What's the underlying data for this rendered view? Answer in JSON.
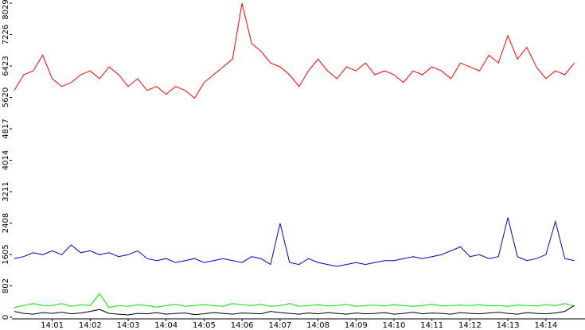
{
  "chart_data": {
    "type": "line",
    "x": [
      0,
      0.25,
      0.5,
      0.75,
      1,
      1.25,
      1.5,
      1.75,
      2,
      2.25,
      2.5,
      2.75,
      3,
      3.25,
      3.5,
      3.75,
      4,
      4.25,
      4.5,
      4.75,
      5,
      5.25,
      5.5,
      5.75,
      6,
      6.25,
      6.5,
      6.75,
      7,
      7.25,
      7.5,
      7.75,
      8,
      8.25,
      8.5,
      8.75,
      9,
      9.25,
      9.5,
      9.75,
      10,
      10.25,
      10.5,
      10.75,
      11,
      11.25,
      11.5,
      11.75,
      12,
      12.25,
      12.5,
      12.75,
      13,
      13.25,
      13.5,
      13.75,
      14,
      14.25,
      14.5,
      14.75
    ],
    "xlim": [
      -0.06,
      15.03
    ],
    "xticks": [
      {
        "value": 1,
        "label": "14:01"
      },
      {
        "value": 2,
        "label": "14:02"
      },
      {
        "value": 3,
        "label": "14:03"
      },
      {
        "value": 4,
        "label": "14:04"
      },
      {
        "value": 5,
        "label": "14:05"
      },
      {
        "value": 6,
        "label": "14:06"
      },
      {
        "value": 7,
        "label": "14:07"
      },
      {
        "value": 8,
        "label": "14:08"
      },
      {
        "value": 9,
        "label": "14:09"
      },
      {
        "value": 10,
        "label": "14:10"
      },
      {
        "value": 11,
        "label": "14:11"
      },
      {
        "value": 12,
        "label": "14:12"
      },
      {
        "value": 13,
        "label": "14:13"
      },
      {
        "value": 14,
        "label": "14:14"
      }
    ],
    "ylim": [
      0,
      8029
    ],
    "yticks": [
      0,
      802,
      1605,
      2408,
      3211,
      4014,
      4817,
      5620,
      6423,
      7226,
      8029
    ],
    "grid": false,
    "series": [
      {
        "color": "#ff0000",
        "values": [
          5800,
          6200,
          6300,
          6700,
          6100,
          5900,
          6000,
          6200,
          6300,
          6100,
          6400,
          6200,
          5900,
          6100,
          5800,
          5900,
          5700,
          5900,
          5800,
          5600,
          6000,
          6200,
          6400,
          6600,
          8029,
          7000,
          6800,
          6500,
          6400,
          6200,
          5900,
          6300,
          6600,
          6300,
          6100,
          6400,
          6300,
          6500,
          6200,
          6300,
          6200,
          6000,
          6300,
          6200,
          6400,
          6300,
          6100,
          6500,
          6400,
          6300,
          6700,
          6500,
          7200,
          6600,
          6900,
          6400,
          6100,
          6300,
          6200,
          6500
        ]
      },
      {
        "color": "#0000c8",
        "values": [
          1500,
          1550,
          1650,
          1600,
          1700,
          1600,
          1850,
          1650,
          1700,
          1600,
          1650,
          1550,
          1600,
          1700,
          1500,
          1450,
          1500,
          1400,
          1450,
          1500,
          1400,
          1450,
          1500,
          1450,
          1400,
          1550,
          1500,
          1350,
          2400,
          1400,
          1350,
          1500,
          1400,
          1350,
          1300,
          1350,
          1400,
          1350,
          1400,
          1450,
          1450,
          1500,
          1550,
          1500,
          1550,
          1600,
          1700,
          1800,
          1550,
          1600,
          1500,
          1550,
          2550,
          1550,
          1450,
          1500,
          1600,
          2450,
          1500,
          1450
        ]
      },
      {
        "color": "#00e000",
        "values": [
          250,
          300,
          350,
          300,
          300,
          350,
          280,
          320,
          300,
          600,
          250,
          300,
          280,
          320,
          300,
          260,
          300,
          330,
          280,
          300,
          320,
          300,
          280,
          350,
          320,
          300,
          330,
          280,
          300,
          350,
          280,
          300,
          320,
          290,
          300,
          330,
          280,
          300,
          310,
          290,
          320,
          300,
          280,
          300,
          330,
          290,
          300,
          310,
          300,
          320,
          290,
          300,
          280,
          310,
          300,
          290,
          320,
          300,
          350,
          280
        ]
      },
      {
        "color": "#000000",
        "values": [
          150,
          100,
          80,
          120,
          100,
          130,
          90,
          110,
          150,
          200,
          100,
          80,
          60,
          100,
          90,
          120,
          80,
          100,
          110,
          70,
          90,
          120,
          100,
          80,
          110,
          100,
          90,
          150,
          120,
          100,
          80,
          110,
          90,
          120,
          100,
          80,
          110,
          90,
          100,
          120,
          80,
          100,
          130,
          90,
          110,
          100,
          80,
          120,
          100,
          90,
          110,
          130,
          100,
          80,
          120,
          100,
          90,
          110,
          150,
          300
        ]
      }
    ]
  }
}
